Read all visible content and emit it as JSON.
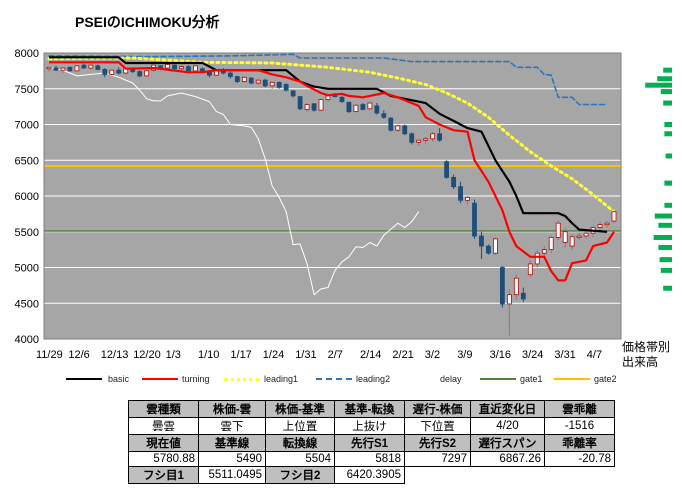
{
  "title": "PSEIのICHIMOKU分析",
  "side_labels": [
    "価格帯別",
    "出来高"
  ],
  "legend": [
    {
      "label": "basic",
      "color": "#000000",
      "style": "solid"
    },
    {
      "label": "turning",
      "color": "#ff0000",
      "style": "solid"
    },
    {
      "label": "leading1",
      "color": "#ffff33",
      "style": "dotted"
    },
    {
      "label": "leading2",
      "color": "#2e75b6",
      "style": "dashed"
    },
    {
      "label": "delay",
      "color": "#ffffff",
      "style": "solid"
    },
    {
      "label": "gate1",
      "color": "#548235",
      "style": "solid"
    },
    {
      "label": "gate2",
      "color": "#ffc000",
      "style": "solid"
    }
  ],
  "table": {
    "row1": [
      "雲種類",
      "株価-雲",
      "株価-基準",
      "基準-転換",
      "遅行-株価",
      "直近変化日",
      "雲乖離"
    ],
    "row2": [
      "曇雲",
      "雲下",
      "上位置",
      "上抜け",
      "下位置",
      "4/20",
      "-1516"
    ],
    "row3": [
      "現在値",
      "基準線",
      "転換線",
      "先行S1",
      "先行S2",
      "遅行スパン",
      "乖離率"
    ],
    "row4": [
      "5780.88",
      "5490",
      "5504",
      "5818",
      "7297",
      "6867.26",
      "-20.78"
    ],
    "row5": [
      "フシ目1",
      "5511.0495",
      "フシ目2",
      "6420.3905"
    ]
  },
  "chart_data": {
    "type": "line",
    "title": "PSEIのICHIMOKU分析",
    "ylim": [
      4000,
      8000
    ],
    "yticks": [
      4000,
      4500,
      5000,
      5500,
      6000,
      6500,
      7000,
      7500,
      8000
    ],
    "xticks": [
      "11/29",
      "12/6",
      "12/13",
      "12/20",
      "1/3",
      "1/10",
      "1/17",
      "1/24",
      "1/31",
      "2/7",
      "2/14",
      "2/21",
      "3/2",
      "3/9",
      "3/16",
      "3/24",
      "3/31",
      "4/7"
    ],
    "n_points": 82,
    "grid": true,
    "legend_placement": "bottom",
    "gate1": 5511.0495,
    "gate2": 6420.3905,
    "series": [
      {
        "name": "basic",
        "color": "#000000",
        "points": [
          [
            0,
            7940
          ],
          [
            10,
            7940
          ],
          [
            11,
            7860
          ],
          [
            22,
            7860
          ],
          [
            24,
            7760
          ],
          [
            34,
            7760
          ],
          [
            36,
            7600
          ],
          [
            38,
            7530
          ],
          [
            40,
            7500
          ],
          [
            47,
            7500
          ],
          [
            49,
            7400
          ],
          [
            54,
            7300
          ],
          [
            56,
            7150
          ],
          [
            58,
            7050
          ],
          [
            60,
            6950
          ],
          [
            62,
            6900
          ],
          [
            64,
            6500
          ],
          [
            66,
            6200
          ],
          [
            67,
            6000
          ],
          [
            68,
            5760
          ],
          [
            71,
            5760
          ],
          [
            73,
            5760
          ],
          [
            74,
            5720
          ],
          [
            75,
            5620
          ],
          [
            76,
            5530
          ],
          [
            80,
            5500
          ]
        ]
      },
      {
        "name": "turning",
        "color": "#ff0000",
        "points": [
          [
            0,
            7870
          ],
          [
            10,
            7870
          ],
          [
            11,
            7780
          ],
          [
            15,
            7790
          ],
          [
            20,
            7730
          ],
          [
            22,
            7730
          ],
          [
            24,
            7760
          ],
          [
            30,
            7760
          ],
          [
            32,
            7700
          ],
          [
            34,
            7660
          ],
          [
            36,
            7600
          ],
          [
            37,
            7540
          ],
          [
            39,
            7440
          ],
          [
            40,
            7410
          ],
          [
            42,
            7430
          ],
          [
            43,
            7400
          ],
          [
            45,
            7380
          ],
          [
            47,
            7420
          ],
          [
            48,
            7440
          ],
          [
            50,
            7380
          ],
          [
            53,
            7260
          ],
          [
            54,
            7100
          ],
          [
            56,
            7000
          ],
          [
            58,
            6920
          ],
          [
            60,
            6900
          ],
          [
            61,
            6500
          ],
          [
            62,
            6350
          ],
          [
            63,
            6200
          ],
          [
            64,
            6000
          ],
          [
            65,
            5800
          ],
          [
            66,
            5500
          ],
          [
            67,
            5300
          ],
          [
            69,
            5150
          ],
          [
            71,
            5150
          ],
          [
            72,
            4950
          ],
          [
            73,
            4820
          ],
          [
            74,
            4820
          ],
          [
            75,
            5060
          ],
          [
            77,
            5100
          ],
          [
            78,
            5300
          ],
          [
            80,
            5350
          ],
          [
            81,
            5500
          ]
        ]
      },
      {
        "name": "leading1",
        "color": "#ffff33",
        "points": [
          [
            0,
            7920
          ],
          [
            12,
            7930
          ],
          [
            22,
            7870
          ],
          [
            32,
            7860
          ],
          [
            40,
            7800
          ],
          [
            46,
            7730
          ],
          [
            50,
            7650
          ],
          [
            54,
            7560
          ],
          [
            57,
            7440
          ],
          [
            60,
            7300
          ],
          [
            63,
            7100
          ],
          [
            66,
            6850
          ],
          [
            69,
            6620
          ],
          [
            72,
            6420
          ],
          [
            75,
            6240
          ],
          [
            78,
            6020
          ],
          [
            81,
            5780
          ]
        ]
      },
      {
        "name": "leading2",
        "color": "#2e75b6",
        "points": [
          [
            0,
            7960
          ],
          [
            14,
            7950
          ],
          [
            26,
            7960
          ],
          [
            35,
            7980
          ],
          [
            36,
            7930
          ],
          [
            48,
            7930
          ],
          [
            52,
            7880
          ],
          [
            66,
            7880
          ],
          [
            67,
            7800
          ],
          [
            70,
            7800
          ],
          [
            71,
            7700
          ],
          [
            72,
            7690
          ],
          [
            73,
            7380
          ],
          [
            75,
            7380
          ],
          [
            76,
            7280
          ],
          [
            80,
            7280
          ]
        ]
      },
      {
        "name": "delay",
        "color": "#ffffff",
        "points": [
          [
            0,
            7800
          ],
          [
            2,
            7760
          ],
          [
            4,
            7680
          ],
          [
            6,
            7700
          ],
          [
            8,
            7720
          ],
          [
            10,
            7660
          ],
          [
            12,
            7580
          ],
          [
            13,
            7480
          ],
          [
            14,
            7360
          ],
          [
            15,
            7330
          ],
          [
            16,
            7330
          ],
          [
            17,
            7400
          ],
          [
            19,
            7440
          ],
          [
            21,
            7390
          ],
          [
            23,
            7320
          ],
          [
            24,
            7180
          ],
          [
            25,
            7140
          ],
          [
            26,
            7000
          ],
          [
            28,
            6980
          ],
          [
            29,
            6960
          ],
          [
            30,
            6800
          ],
          [
            31,
            6520
          ],
          [
            32,
            6140
          ],
          [
            33,
            5980
          ],
          [
            34,
            5780
          ],
          [
            35,
            5320
          ],
          [
            36,
            5330
          ],
          [
            37,
            5050
          ],
          [
            38,
            4620
          ],
          [
            39,
            4700
          ],
          [
            40,
            4720
          ],
          [
            41,
            4960
          ],
          [
            42,
            5080
          ],
          [
            43,
            5150
          ],
          [
            44,
            5290
          ],
          [
            45,
            5280
          ],
          [
            46,
            5350
          ],
          [
            47,
            5300
          ],
          [
            48,
            5450
          ],
          [
            50,
            5620
          ],
          [
            51,
            5560
          ],
          [
            52,
            5640
          ],
          [
            53,
            5780
          ]
        ]
      }
    ],
    "candles": [
      [
        0,
        7780,
        7800,
        7740,
        7800
      ],
      [
        1,
        7790,
        7820,
        7750,
        7760
      ],
      [
        2,
        7760,
        7800,
        7720,
        7790
      ],
      [
        3,
        7800,
        7810,
        7740,
        7750
      ],
      [
        4,
        7750,
        7830,
        7740,
        7820
      ],
      [
        5,
        7830,
        7850,
        7780,
        7790
      ],
      [
        6,
        7790,
        7840,
        7760,
        7830
      ],
      [
        7,
        7820,
        7840,
        7760,
        7770
      ],
      [
        8,
        7770,
        7790,
        7660,
        7700
      ],
      [
        9,
        7700,
        7770,
        7690,
        7760
      ],
      [
        10,
        7760,
        7800,
        7700,
        7720
      ],
      [
        11,
        7720,
        7790,
        7700,
        7780
      ],
      [
        12,
        7770,
        7800,
        7720,
        7740
      ],
      [
        13,
        7740,
        7760,
        7660,
        7680
      ],
      [
        14,
        7680,
        7760,
        7670,
        7750
      ],
      [
        15,
        7760,
        7840,
        7740,
        7830
      ],
      [
        16,
        7820,
        7830,
        7760,
        7790
      ],
      [
        17,
        7790,
        7850,
        7760,
        7840
      ],
      [
        18,
        7830,
        7840,
        7760,
        7780
      ],
      [
        19,
        7780,
        7830,
        7760,
        7810
      ],
      [
        20,
        7810,
        7830,
        7730,
        7750
      ],
      [
        21,
        7750,
        7830,
        7740,
        7820
      ],
      [
        22,
        7780,
        7800,
        7720,
        7740
      ],
      [
        23,
        7740,
        7760,
        7660,
        7690
      ],
      [
        24,
        7690,
        7760,
        7680,
        7750
      ],
      [
        25,
        7750,
        7790,
        7700,
        7720
      ],
      [
        26,
        7720,
        7740,
        7640,
        7670
      ],
      [
        27,
        7670,
        7680,
        7580,
        7600
      ],
      [
        28,
        7600,
        7680,
        7580,
        7660
      ],
      [
        29,
        7650,
        7660,
        7560,
        7580
      ],
      [
        30,
        7580,
        7640,
        7560,
        7620
      ],
      [
        31,
        7620,
        7640,
        7520,
        7540
      ],
      [
        32,
        7540,
        7600,
        7500,
        7590
      ],
      [
        33,
        7590,
        7600,
        7500,
        7520
      ],
      [
        34,
        7560,
        7580,
        7460,
        7480
      ],
      [
        35,
        7470,
        7480,
        7380,
        7400
      ],
      [
        36,
        7390,
        7400,
        7200,
        7220
      ],
      [
        37,
        7210,
        7300,
        7180,
        7280
      ],
      [
        38,
        7290,
        7300,
        7180,
        7200
      ],
      [
        39,
        7200,
        7360,
        7190,
        7350
      ],
      [
        40,
        7350,
        7420,
        7320,
        7400
      ],
      [
        41,
        7410,
        7440,
        7380,
        7390
      ],
      [
        42,
        7380,
        7400,
        7300,
        7320
      ],
      [
        43,
        7310,
        7320,
        7160,
        7180
      ],
      [
        44,
        7180,
        7280,
        7170,
        7270
      ],
      [
        45,
        7280,
        7300,
        7200,
        7210
      ],
      [
        46,
        7220,
        7320,
        7200,
        7300
      ],
      [
        47,
        7260,
        7300,
        7140,
        7160
      ],
      [
        48,
        7150,
        7200,
        7080,
        7100
      ],
      [
        49,
        7090,
        7100,
        6900,
        6920
      ],
      [
        50,
        6920,
        7000,
        6900,
        6980
      ],
      [
        51,
        6980,
        7000,
        6850,
        6870
      ],
      [
        52,
        6870,
        6890,
        6720,
        6750
      ],
      [
        53,
        6750,
        6800,
        6700,
        6780
      ],
      [
        54,
        6780,
        6830,
        6720,
        6800
      ],
      [
        55,
        6800,
        6900,
        6760,
        6870
      ],
      [
        56,
        6870,
        6950,
        6760,
        6780
      ],
      [
        57,
        6480,
        6500,
        6240,
        6260
      ],
      [
        58,
        6260,
        6300,
        6100,
        6130
      ],
      [
        59,
        6130,
        6200,
        5900,
        5940
      ],
      [
        60,
        5940,
        6000,
        5880,
        5980
      ],
      [
        61,
        5900,
        5950,
        5400,
        5440
      ],
      [
        62,
        5440,
        5500,
        5120,
        5300
      ],
      [
        63,
        5300,
        5320,
        5180,
        5200
      ],
      [
        64,
        5200,
        5420,
        5180,
        5400
      ],
      [
        65,
        5000,
        5020,
        4440,
        4490
      ],
      [
        66,
        4490,
        4700,
        4050,
        4620
      ],
      [
        67,
        4620,
        4900,
        4550,
        4850
      ],
      [
        68,
        4640,
        4720,
        4520,
        4560
      ],
      [
        69,
        4900,
        5100,
        4860,
        5050
      ],
      [
        70,
        5050,
        5250,
        5000,
        5200
      ],
      [
        71,
        5200,
        5300,
        5150,
        5250
      ],
      [
        72,
        5250,
        5450,
        5200,
        5420
      ],
      [
        73,
        5420,
        5660,
        5380,
        5620
      ],
      [
        74,
        5350,
        5550,
        5280,
        5500
      ],
      [
        75,
        5300,
        5460,
        5250,
        5430
      ],
      [
        76,
        5430,
        5490,
        5380,
        5440
      ],
      [
        77,
        5440,
        5520,
        5400,
        5480
      ],
      [
        78,
        5480,
        5590,
        5430,
        5560
      ],
      [
        79,
        5560,
        5640,
        5500,
        5600
      ],
      [
        80,
        5600,
        5650,
        5560,
        5620
      ],
      [
        81,
        5650,
        5790,
        5620,
        5780
      ]
    ],
    "volume_by_price": [
      {
        "price": 7760,
        "value": 0.2
      },
      {
        "price": 7640,
        "value": 0.45
      },
      {
        "price": 7550,
        "value": 0.95
      },
      {
        "price": 7460,
        "value": 0.3
      },
      {
        "price": 7300,
        "value": 0.2
      },
      {
        "price": 7000,
        "value": 0.15
      },
      {
        "price": 6870,
        "value": 0.15
      },
      {
        "price": 6560,
        "value": 0.1
      },
      {
        "price": 6180,
        "value": 0.15
      },
      {
        "price": 5870,
        "value": 0.15
      },
      {
        "price": 5720,
        "value": 0.55
      },
      {
        "price": 5590,
        "value": 0.4
      },
      {
        "price": 5420,
        "value": 0.6
      },
      {
        "price": 5280,
        "value": 0.4
      },
      {
        "price": 5110,
        "value": 0.35
      },
      {
        "price": 4960,
        "value": 0.3
      },
      {
        "price": 4710,
        "value": 0.2
      }
    ]
  }
}
